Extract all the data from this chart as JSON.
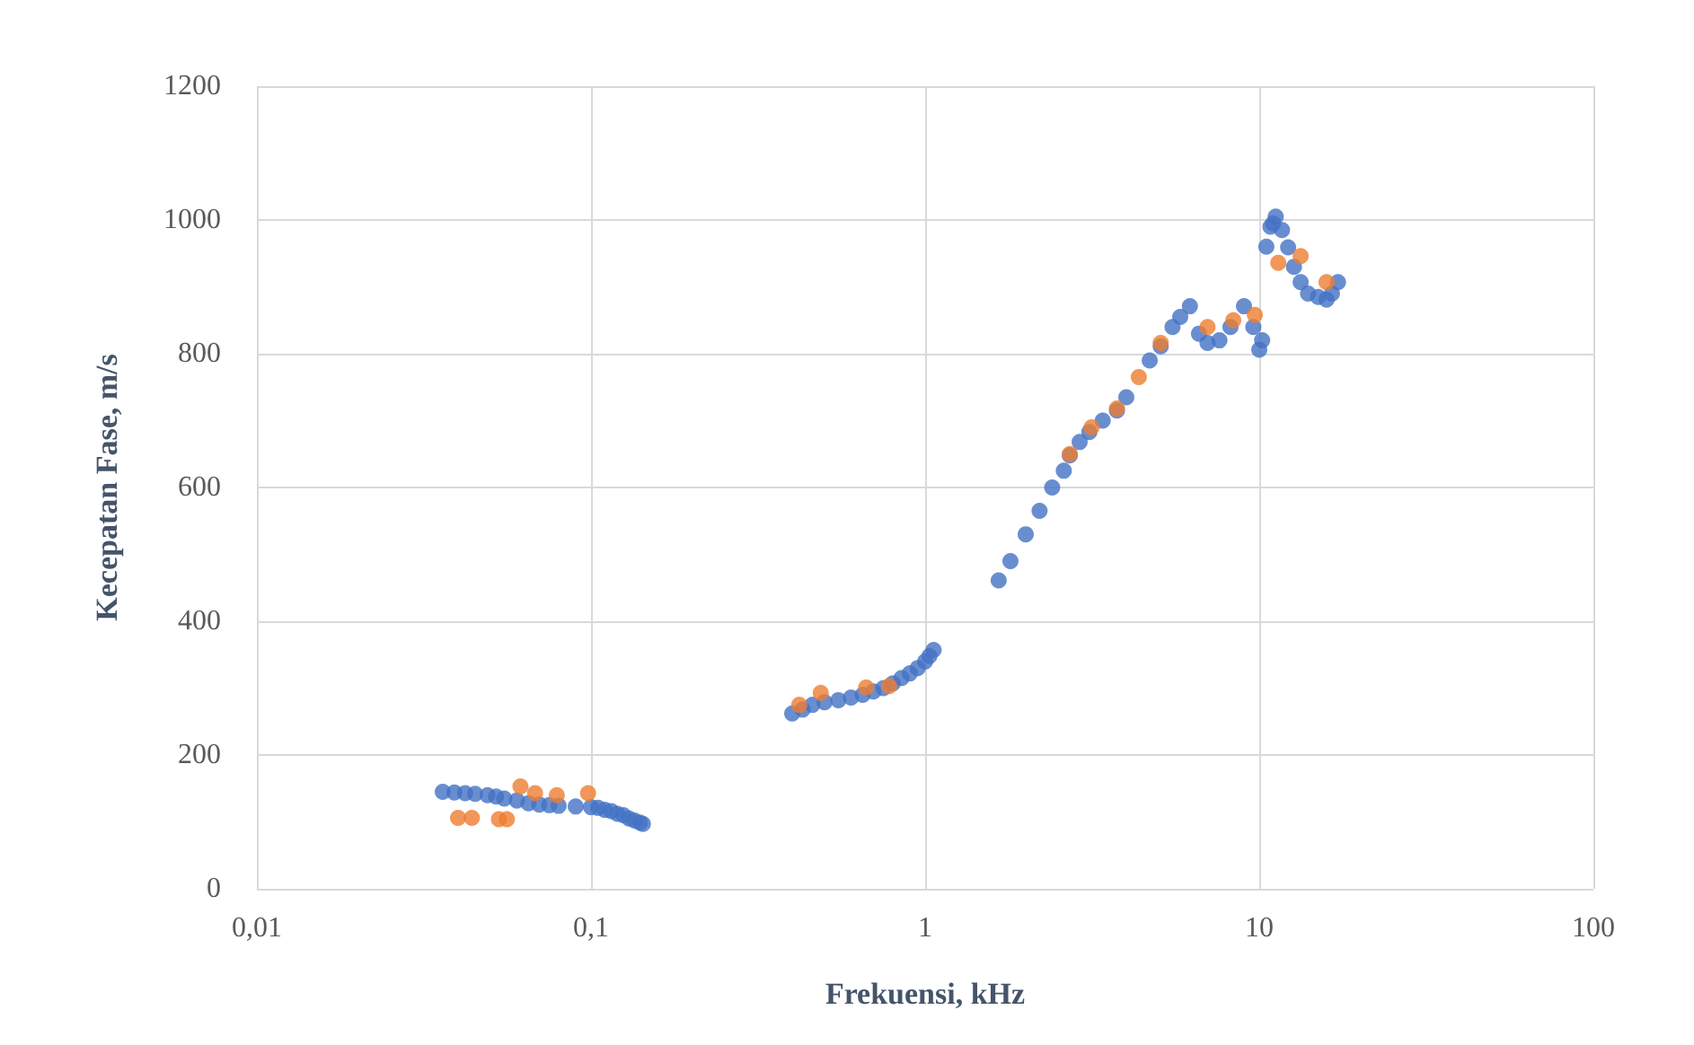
{
  "chart_data": {
    "type": "scatter",
    "xlabel": "Frekuensi, kHz",
    "ylabel": "Kecepatan Fase, m/s",
    "log": "x",
    "grid": true,
    "marker": "circle",
    "xlim": [
      0.01,
      100
    ],
    "xticks": [
      {
        "value": 0.01,
        "label": "0,01"
      },
      {
        "value": 0.1,
        "label": "0,1"
      },
      {
        "value": 1,
        "label": "1"
      },
      {
        "value": 10,
        "label": "10"
      },
      {
        "value": 100,
        "label": "100"
      }
    ],
    "ylim": [
      0,
      1200
    ],
    "yticks": [
      0,
      200,
      400,
      600,
      800,
      1000,
      1200
    ],
    "series": [
      {
        "color": "#4472c4",
        "x": [
          0.036,
          0.039,
          0.042,
          0.045,
          0.049,
          0.052,
          0.055,
          0.06,
          0.065,
          0.07,
          0.075,
          0.08,
          0.09,
          0.1,
          0.105,
          0.11,
          0.115,
          0.12,
          0.125,
          0.13,
          0.135,
          0.14,
          0.143,
          0.4,
          0.43,
          0.46,
          0.5,
          0.55,
          0.6,
          0.65,
          0.7,
          0.75,
          0.8,
          0.85,
          0.9,
          0.95,
          1.0,
          1.03,
          1.06,
          1.66,
          1.8,
          2.0,
          2.2,
          2.4,
          2.6,
          2.71,
          2.9,
          3.1,
          3.4,
          3.75,
          4.0,
          4.7,
          5.07,
          5.5,
          5.8,
          6.2,
          6.6,
          7.0,
          7.6,
          8.2,
          9.0,
          9.6,
          10.0,
          10.2,
          10.5,
          10.8,
          11.0,
          11.2,
          11.7,
          12.2,
          12.7,
          13.3,
          14.0,
          15.0,
          15.9,
          16.5,
          17.2
        ],
        "values": [
          145,
          144,
          143,
          142,
          140,
          138,
          135,
          132,
          128,
          126,
          125,
          124,
          123,
          122,
          121,
          118,
          116,
          112,
          110,
          105,
          102,
          99,
          97,
          262,
          268,
          275,
          279,
          282,
          286,
          290,
          295,
          300,
          307,
          315,
          322,
          330,
          340,
          348,
          357,
          461,
          490,
          530,
          565,
          600,
          625,
          648,
          668,
          683,
          700,
          715,
          735,
          790,
          811,
          840,
          855,
          871,
          830,
          816,
          820,
          840,
          871,
          840,
          806,
          820,
          960,
          990,
          995,
          1005,
          985,
          959,
          930,
          907,
          890,
          885,
          881,
          890,
          907
        ]
      },
      {
        "color": "#ed7d31",
        "x": [
          0.04,
          0.044,
          0.053,
          0.056,
          0.0615,
          0.068,
          0.079,
          0.098,
          0.42,
          0.487,
          0.666,
          0.78,
          2.71,
          3.15,
          3.75,
          4.36,
          5.07,
          7.0,
          8.36,
          9.7,
          11.4,
          13.3,
          15.9
        ],
        "values": [
          106,
          106,
          104,
          104,
          153,
          143,
          140,
          143,
          275,
          293,
          301,
          303,
          650,
          690,
          718,
          765,
          816,
          840,
          850,
          858,
          936,
          946,
          907
        ]
      }
    ]
  }
}
